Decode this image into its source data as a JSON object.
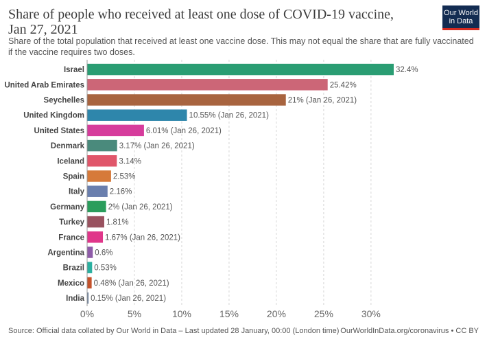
{
  "header": {
    "title": "Share of people who received at least one dose of COVID-19 vaccine, Jan 27, 2021",
    "subtitle": "Share of the total population that received at least one vaccine dose. This may not equal the share that are fully vaccinated if the vaccine requires two doses.",
    "logo_line1": "Our World",
    "logo_line2": "in Data"
  },
  "footer": {
    "source": "Source: Official data collated by Our World in Data – Last updated 28 January, 00:00 (London time)",
    "license": "OurWorldInData.org/coronavirus • CC BY"
  },
  "colors": {
    "logo_bg": "#132c52",
    "logo_accent": "#d42b21"
  },
  "chart_data": {
    "type": "bar",
    "orientation": "horizontal",
    "unit": "%",
    "xlim": [
      0,
      32.4
    ],
    "xticks": [
      0,
      5,
      10,
      15,
      20,
      25,
      30
    ],
    "xtick_labels": [
      "0%",
      "5%",
      "10%",
      "15%",
      "20%",
      "25%",
      "30%"
    ],
    "grid": "vertical dashed",
    "bars": [
      {
        "label": "Israel",
        "value": 32.4,
        "text": "32.4%",
        "color": "#2a9d73"
      },
      {
        "label": "United Arab Emirates",
        "value": 25.42,
        "text": "25.42%",
        "color": "#cc6677"
      },
      {
        "label": "Seychelles",
        "value": 21,
        "text": "21% (Jan 26, 2021)",
        "color": "#a8643f"
      },
      {
        "label": "United Kingdom",
        "value": 10.55,
        "text": "10.55% (Jan 26, 2021)",
        "color": "#2e86ab"
      },
      {
        "label": "United States",
        "value": 6.01,
        "text": "6.01% (Jan 26, 2021)",
        "color": "#d63c9c"
      },
      {
        "label": "Denmark",
        "value": 3.17,
        "text": "3.17% (Jan 26, 2021)",
        "color": "#4a8a7c"
      },
      {
        "label": "Iceland",
        "value": 3.14,
        "text": "3.14%",
        "color": "#e0566a"
      },
      {
        "label": "Spain",
        "value": 2.53,
        "text": "2.53%",
        "color": "#d67a3a"
      },
      {
        "label": "Italy",
        "value": 2.16,
        "text": "2.16%",
        "color": "#6a7fae"
      },
      {
        "label": "Germany",
        "value": 2,
        "text": "2% (Jan 26, 2021)",
        "color": "#2a9d5c"
      },
      {
        "label": "Turkey",
        "value": 1.81,
        "text": "1.81%",
        "color": "#99525f"
      },
      {
        "label": "France",
        "value": 1.67,
        "text": "1.67% (Jan 26, 2021)",
        "color": "#e0368a"
      },
      {
        "label": "Argentina",
        "value": 0.6,
        "text": "0.6%",
        "color": "#8e5ba8"
      },
      {
        "label": "Brazil",
        "value": 0.53,
        "text": "0.53%",
        "color": "#2bb0a0"
      },
      {
        "label": "Mexico",
        "value": 0.48,
        "text": "0.48% (Jan 26, 2021)",
        "color": "#c4522b"
      },
      {
        "label": "India",
        "value": 0.15,
        "text": "0.15% (Jan 26, 2021)",
        "color": "#6b7f99"
      }
    ]
  }
}
